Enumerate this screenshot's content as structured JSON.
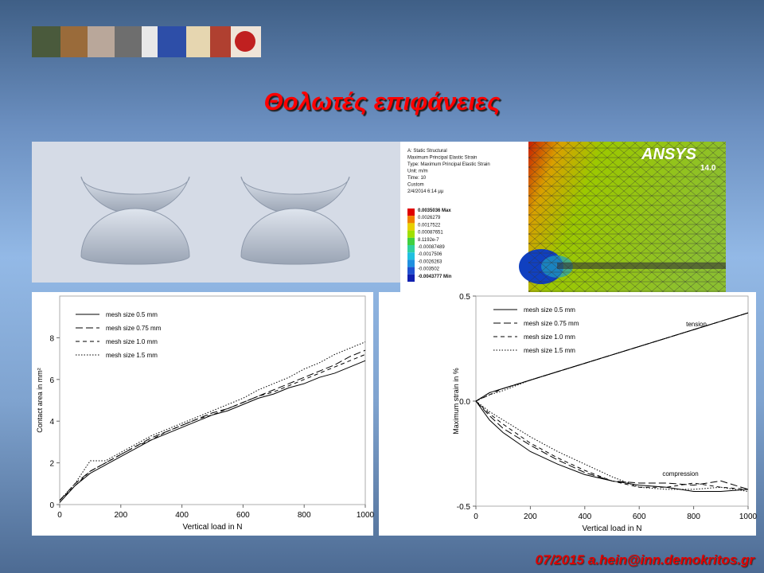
{
  "header": {
    "title": "Θολωτές επιφάνειες"
  },
  "footer": {
    "text": "07/2015 a.hein@inn.demokritos.gr"
  },
  "ansys_panel": {
    "logo": "ANSYS",
    "version": "14.0",
    "info": [
      "A: Static Structural",
      "Maximum Principal Elastic Strain",
      "Type: Maximum Principal Elastic Strain",
      "Unit: m/m",
      "Time: 10",
      "Custom",
      "2/4/2014 6:14 μμ"
    ],
    "legend": [
      "0.0035036 Max",
      "0.0026279",
      "0.0017522",
      "0.00087651",
      "8.1192e-7",
      "-0.00087489",
      "-0.0017506",
      "-0.0026263",
      "-0.003502",
      "-0.0043777 Min"
    ]
  },
  "chart_data": [
    {
      "type": "line",
      "x_label": "Vertical load in N",
      "y_label": "Contact area in mm²",
      "x": [
        0,
        50,
        100,
        150,
        200,
        250,
        300,
        350,
        400,
        450,
        500,
        550,
        600,
        650,
        700,
        750,
        800,
        850,
        900,
        950,
        1000
      ],
      "xlim": [
        0,
        1000
      ],
      "xticks": [
        0,
        200,
        400,
        600,
        800,
        1000
      ],
      "ylim": [
        0,
        10
      ],
      "yticks": [
        0,
        2,
        4,
        6,
        8
      ],
      "series": [
        {
          "name": "mesh size 0.5 mm",
          "color": "#000000",
          "style": "solid",
          "values": [
            0.1,
            0.9,
            1.5,
            1.9,
            2.3,
            2.7,
            3.1,
            3.4,
            3.7,
            4.0,
            4.3,
            4.5,
            4.8,
            5.1,
            5.3,
            5.6,
            5.8,
            6.1,
            6.3,
            6.6,
            6.9
          ]
        },
        {
          "name": "mesh size 0.75 mm",
          "color": "#000000",
          "style": "long-dash",
          "values": [
            0.2,
            1.0,
            1.6,
            2.0,
            2.4,
            2.8,
            3.2,
            3.5,
            3.8,
            4.1,
            4.4,
            4.6,
            4.9,
            5.2,
            5.5,
            5.8,
            6.1,
            6.4,
            6.7,
            7.1,
            7.4
          ]
        },
        {
          "name": "mesh size 1.0 mm",
          "color": "#000000",
          "style": "dash",
          "values": [
            0.2,
            0.9,
            1.6,
            2.0,
            2.4,
            2.8,
            3.1,
            3.5,
            3.8,
            4.1,
            4.3,
            4.6,
            4.9,
            5.2,
            5.4,
            5.7,
            6.0,
            6.3,
            6.6,
            6.9,
            7.2
          ]
        },
        {
          "name": "mesh size 1.5 mm",
          "color": "#000000",
          "style": "dotted",
          "values": [
            0.2,
            1.0,
            2.1,
            2.1,
            2.5,
            2.9,
            3.3,
            3.6,
            3.9,
            4.2,
            4.5,
            4.8,
            5.1,
            5.5,
            5.8,
            6.1,
            6.5,
            6.8,
            7.2,
            7.5,
            7.8
          ]
        }
      ],
      "grid": false
    },
    {
      "type": "line",
      "x_label": "Vertical load in N",
      "y_label": "Maximum strain in %",
      "x": [
        0,
        50,
        100,
        200,
        300,
        400,
        500,
        600,
        700,
        800,
        900,
        1000
      ],
      "xlim": [
        0,
        1000
      ],
      "xticks": [
        0,
        200,
        400,
        600,
        800,
        1000
      ],
      "ylim": [
        -0.5,
        0.5
      ],
      "yticks": [
        -0.5,
        {
          "value": 0,
          "label": "0.0"
        },
        0.5
      ],
      "annotations": [
        "tension",
        "compression"
      ],
      "series": [
        {
          "name": "mesh size 0.5 mm",
          "color": "#000000",
          "style": "solid",
          "tension": [
            0,
            0.04,
            0.06,
            0.1,
            0.14,
            0.18,
            0.22,
            0.26,
            0.3,
            0.34,
            0.38,
            0.42
          ],
          "compression": [
            0,
            -0.09,
            -0.15,
            -0.24,
            -0.3,
            -0.35,
            -0.38,
            -0.4,
            -0.41,
            -0.43,
            -0.43,
            -0.42
          ]
        },
        {
          "name": "mesh size 0.75 mm",
          "color": "#000000",
          "style": "long-dash",
          "tension": [
            0,
            0.04,
            0.06,
            0.1,
            0.14,
            0.18,
            0.22,
            0.26,
            0.3,
            0.34,
            0.38,
            0.42
          ],
          "compression": [
            0,
            -0.07,
            -0.13,
            -0.21,
            -0.28,
            -0.34,
            -0.38,
            -0.39,
            -0.39,
            -0.4,
            -0.38,
            -0.42
          ]
        },
        {
          "name": "mesh size 1.0 mm",
          "color": "#000000",
          "style": "dash",
          "tension": [
            0,
            0.03,
            0.06,
            0.1,
            0.14,
            0.18,
            0.22,
            0.26,
            0.3,
            0.34,
            0.38,
            0.42
          ],
          "compression": [
            0,
            -0.06,
            -0.11,
            -0.2,
            -0.27,
            -0.33,
            -0.38,
            -0.41,
            -0.41,
            -0.39,
            -0.41,
            -0.42
          ]
        },
        {
          "name": "mesh size 1.5 mm",
          "color": "#000000",
          "style": "dotted",
          "tension": [
            0,
            0.03,
            0.05,
            0.1,
            0.14,
            0.18,
            0.22,
            0.26,
            0.3,
            0.34,
            0.38,
            0.42
          ],
          "compression": [
            0,
            -0.05,
            -0.09,
            -0.17,
            -0.24,
            -0.3,
            -0.36,
            -0.41,
            -0.42,
            -0.42,
            -0.41,
            -0.43
          ]
        }
      ],
      "grid": false
    }
  ]
}
